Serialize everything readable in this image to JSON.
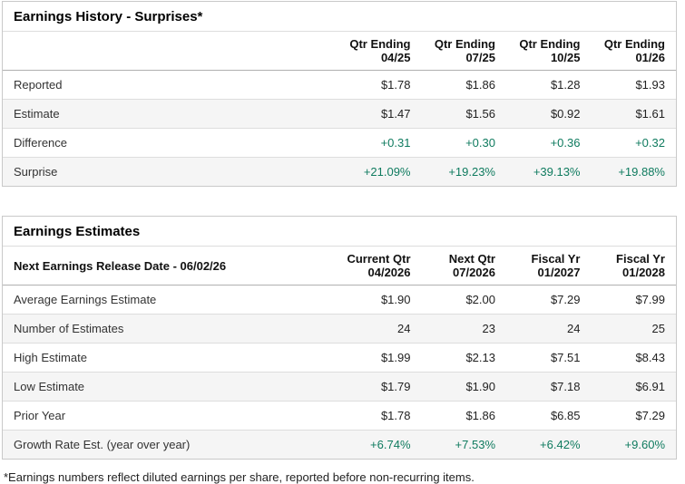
{
  "colors": {
    "positive_value_green": "#0f7b5f",
    "shaded_row_bg": "#f5f5f5",
    "table_border": "#c9c9c9"
  },
  "surprises": {
    "title": "Earnings History - Surprises*",
    "columns": [
      {
        "line1": "Qtr Ending",
        "line2": "04/25"
      },
      {
        "line1": "Qtr Ending",
        "line2": "07/25"
      },
      {
        "line1": "Qtr Ending",
        "line2": "10/25"
      },
      {
        "line1": "Qtr Ending",
        "line2": "01/26"
      }
    ],
    "rows": [
      {
        "label": "Reported",
        "values": [
          "$1.78",
          "$1.86",
          "$1.28",
          "$1.93"
        ]
      },
      {
        "label": "Estimate",
        "values": [
          "$1.47",
          "$1.56",
          "$0.92",
          "$1.61"
        ]
      },
      {
        "label": "Difference",
        "values": [
          "+0.31",
          "+0.30",
          "+0.36",
          "+0.32"
        ]
      },
      {
        "label": "Surprise",
        "values": [
          "+21.09%",
          "+19.23%",
          "+39.13%",
          "+19.88%"
        ]
      }
    ]
  },
  "estimates": {
    "title": "Earnings Estimates",
    "release_label": "Next Earnings Release Date - 06/02/26",
    "columns": [
      {
        "line1": "Current Qtr",
        "line2": "04/2026"
      },
      {
        "line1": "Next Qtr",
        "line2": "07/2026"
      },
      {
        "line1": "Fiscal Yr",
        "line2": "01/2027"
      },
      {
        "line1": "Fiscal Yr",
        "line2": "01/2028"
      }
    ],
    "rows": [
      {
        "label": "Average Earnings Estimate",
        "values": [
          "$1.90",
          "$2.00",
          "$7.29",
          "$7.99"
        ]
      },
      {
        "label": "Number of Estimates",
        "values": [
          "24",
          "23",
          "24",
          "25"
        ]
      },
      {
        "label": "High Estimate",
        "values": [
          "$1.99",
          "$2.13",
          "$7.51",
          "$8.43"
        ]
      },
      {
        "label": "Low Estimate",
        "values": [
          "$1.79",
          "$1.90",
          "$7.18",
          "$6.91"
        ]
      },
      {
        "label": "Prior Year",
        "values": [
          "$1.78",
          "$1.86",
          "$6.85",
          "$7.29"
        ]
      },
      {
        "label": "Growth Rate Est. (year over year)",
        "values": [
          "+6.74%",
          "+7.53%",
          "+6.42%",
          "+9.60%"
        ]
      }
    ]
  },
  "footnote": "*Earnings numbers reflect diluted earnings per share, reported before non-recurring items."
}
